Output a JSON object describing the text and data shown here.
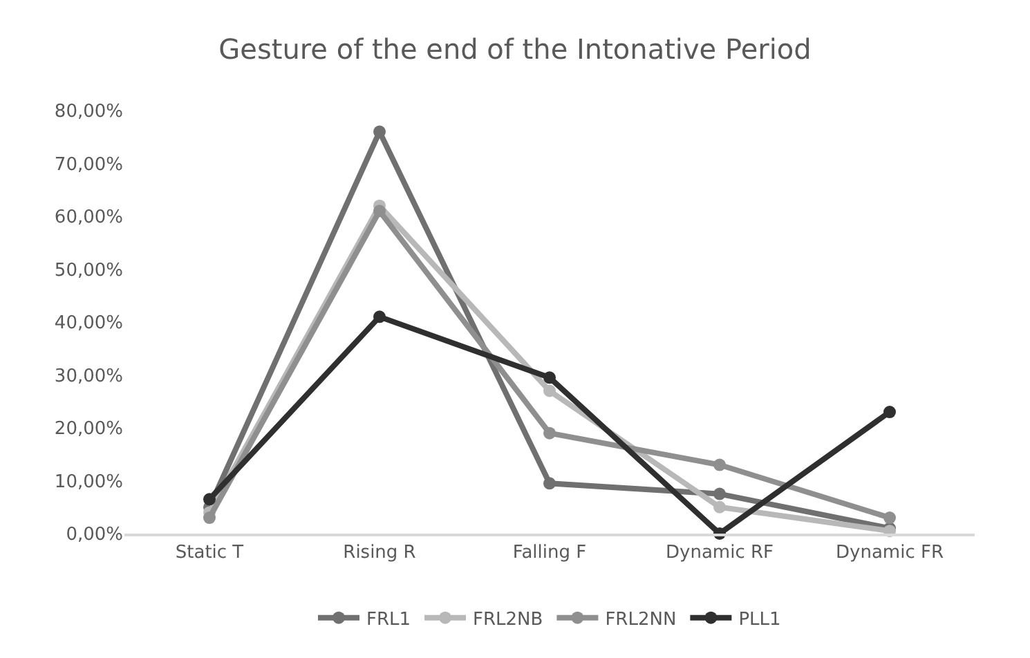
{
  "chart_data": {
    "type": "line",
    "title": "Gesture of the end of the Intonative Period",
    "categories": [
      "Static T",
      "Rising R",
      "Falling F",
      "Dynamic RF",
      "Dynamic FR"
    ],
    "series": [
      {
        "name": "FRL1",
        "color": "#707070",
        "values": [
          5,
          76,
          9.5,
          7.5,
          1
        ]
      },
      {
        "name": "FRL2NB",
        "color": "#b8b8b8",
        "values": [
          4,
          62,
          27,
          5,
          0.5
        ]
      },
      {
        "name": "FRL2NN",
        "color": "#8f8f8f",
        "values": [
          3,
          61,
          19,
          13,
          3
        ]
      },
      {
        "name": "PLL1",
        "color": "#2f2f2f",
        "values": [
          6.5,
          41,
          29.5,
          0,
          23
        ]
      }
    ],
    "ylim": [
      0,
      80
    ],
    "yticks": [
      {
        "value": 0,
        "label": "0,00%"
      },
      {
        "value": 10,
        "label": "10,00%"
      },
      {
        "value": 20,
        "label": "20,00%"
      },
      {
        "value": 30,
        "label": "30,00%"
      },
      {
        "value": 40,
        "label": "40,00%"
      },
      {
        "value": 50,
        "label": "50,00%"
      },
      {
        "value": 60,
        "label": "60,00%"
      },
      {
        "value": 70,
        "label": "70,00%"
      },
      {
        "value": 80,
        "label": "80,00%"
      }
    ],
    "grid": false,
    "legend": "bottom",
    "marker": "circle",
    "line_style": "solid"
  }
}
